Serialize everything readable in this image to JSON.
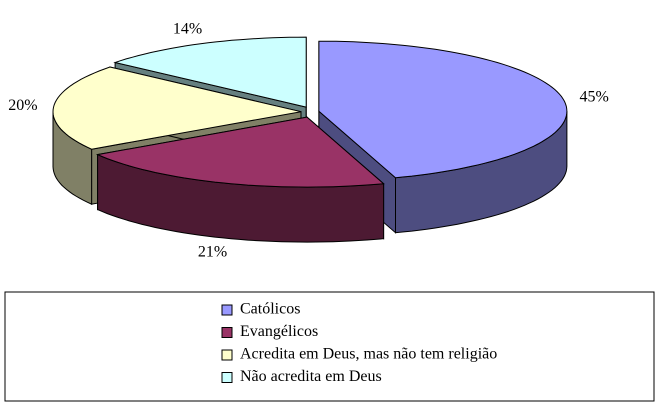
{
  "chart_data": {
    "type": "pie3d",
    "categories": [
      "Católicos",
      "Evangélicos",
      "Acredita em Deus, mas não tem religião",
      "Não acredita em Deus"
    ],
    "values": [
      45,
      21,
      20,
      14
    ],
    "value_labels": [
      "45%",
      "21%",
      "20%",
      "14%"
    ],
    "colors": [
      "#9999ff",
      "#993366",
      "#ffffcc",
      "#ccffff"
    ],
    "legend": "bottom"
  }
}
